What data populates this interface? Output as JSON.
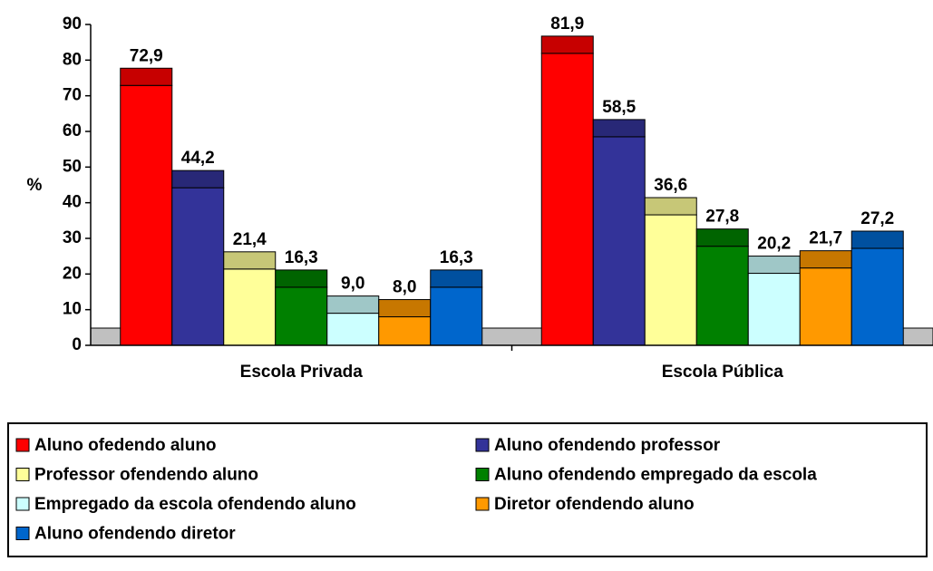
{
  "chart_data": {
    "type": "bar",
    "ylabel": "%",
    "categories": [
      "Escola Privada",
      "Escola Pública"
    ],
    "ylim": [
      0,
      90
    ],
    "yticks": [
      0,
      10,
      20,
      30,
      40,
      50,
      60,
      70,
      80,
      90
    ],
    "legend": "bottom",
    "series": [
      {
        "name": "Aluno ofedendo aluno",
        "color": "#ff0000",
        "values": [
          72.9,
          81.9
        ],
        "value_labels": [
          "72,9",
          "81,9"
        ]
      },
      {
        "name": "Aluno ofendendo professor",
        "color": "#333399",
        "values": [
          44.2,
          58.5
        ],
        "value_labels": [
          "44,2",
          "58,5"
        ]
      },
      {
        "name": "Professor ofendendo aluno",
        "color": "#ffff99",
        "values": [
          21.4,
          36.6
        ],
        "value_labels": [
          "21,4",
          "36,6"
        ]
      },
      {
        "name": "Aluno ofendendo empregado da escola",
        "color": "#008000",
        "values": [
          16.3,
          27.8
        ],
        "value_labels": [
          "16,3",
          "27,8"
        ]
      },
      {
        "name": "Empregado da escola ofendendo aluno",
        "color": "#ccffff",
        "values": [
          9.0,
          20.2
        ],
        "value_labels": [
          "9,0",
          "20,2"
        ]
      },
      {
        "name": "Diretor ofendendo aluno",
        "color": "#ff9900",
        "values": [
          8.0,
          21.7
        ],
        "value_labels": [
          "8,0",
          "21,7"
        ]
      },
      {
        "name": "Aluno ofendendo diretor",
        "color": "#0066cc",
        "values": [
          16.3,
          27.2
        ],
        "value_labels": [
          "16,3",
          "27,2"
        ]
      }
    ]
  }
}
